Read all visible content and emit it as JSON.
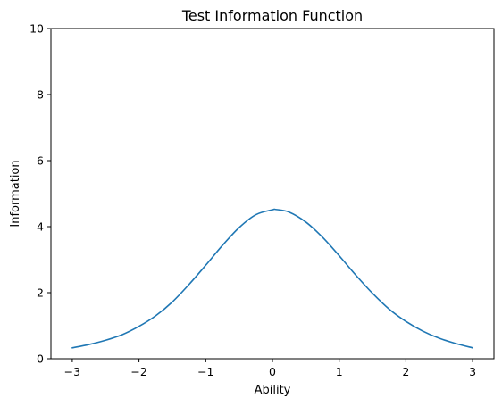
{
  "chart_data": {
    "type": "line",
    "title": "Test Information Function",
    "xlabel": "Ability",
    "ylabel": "Information",
    "xlim": [
      -3.32,
      3.32
    ],
    "ylim": [
      0,
      10
    ],
    "x_ticks": [
      -3,
      -2,
      -1,
      0,
      1,
      2,
      3
    ],
    "x_tick_labels": [
      "−3",
      "−2",
      "−1",
      "0",
      "1",
      "2",
      "3"
    ],
    "y_ticks": [
      0,
      2,
      4,
      6,
      8,
      10
    ],
    "y_tick_labels": [
      "0",
      "2",
      "4",
      "6",
      "8",
      "10"
    ],
    "grid": false,
    "series": [
      {
        "color": "#1f77b4",
        "x": [
          -3.0,
          -2.75,
          -2.5,
          -2.25,
          -2.0,
          -1.75,
          -1.5,
          -1.25,
          -1.0,
          -0.75,
          -0.5,
          -0.25,
          0.0,
          0.05,
          0.25,
          0.5,
          0.75,
          1.0,
          1.25,
          1.5,
          1.75,
          2.0,
          2.25,
          2.5,
          2.75,
          3.0
        ],
        "y": [
          0.33,
          0.43,
          0.56,
          0.73,
          0.98,
          1.3,
          1.72,
          2.25,
          2.83,
          3.43,
          3.97,
          4.36,
          4.51,
          4.52,
          4.44,
          4.14,
          3.68,
          3.12,
          2.53,
          1.98,
          1.5,
          1.13,
          0.84,
          0.62,
          0.46,
          0.33
        ]
      }
    ]
  }
}
